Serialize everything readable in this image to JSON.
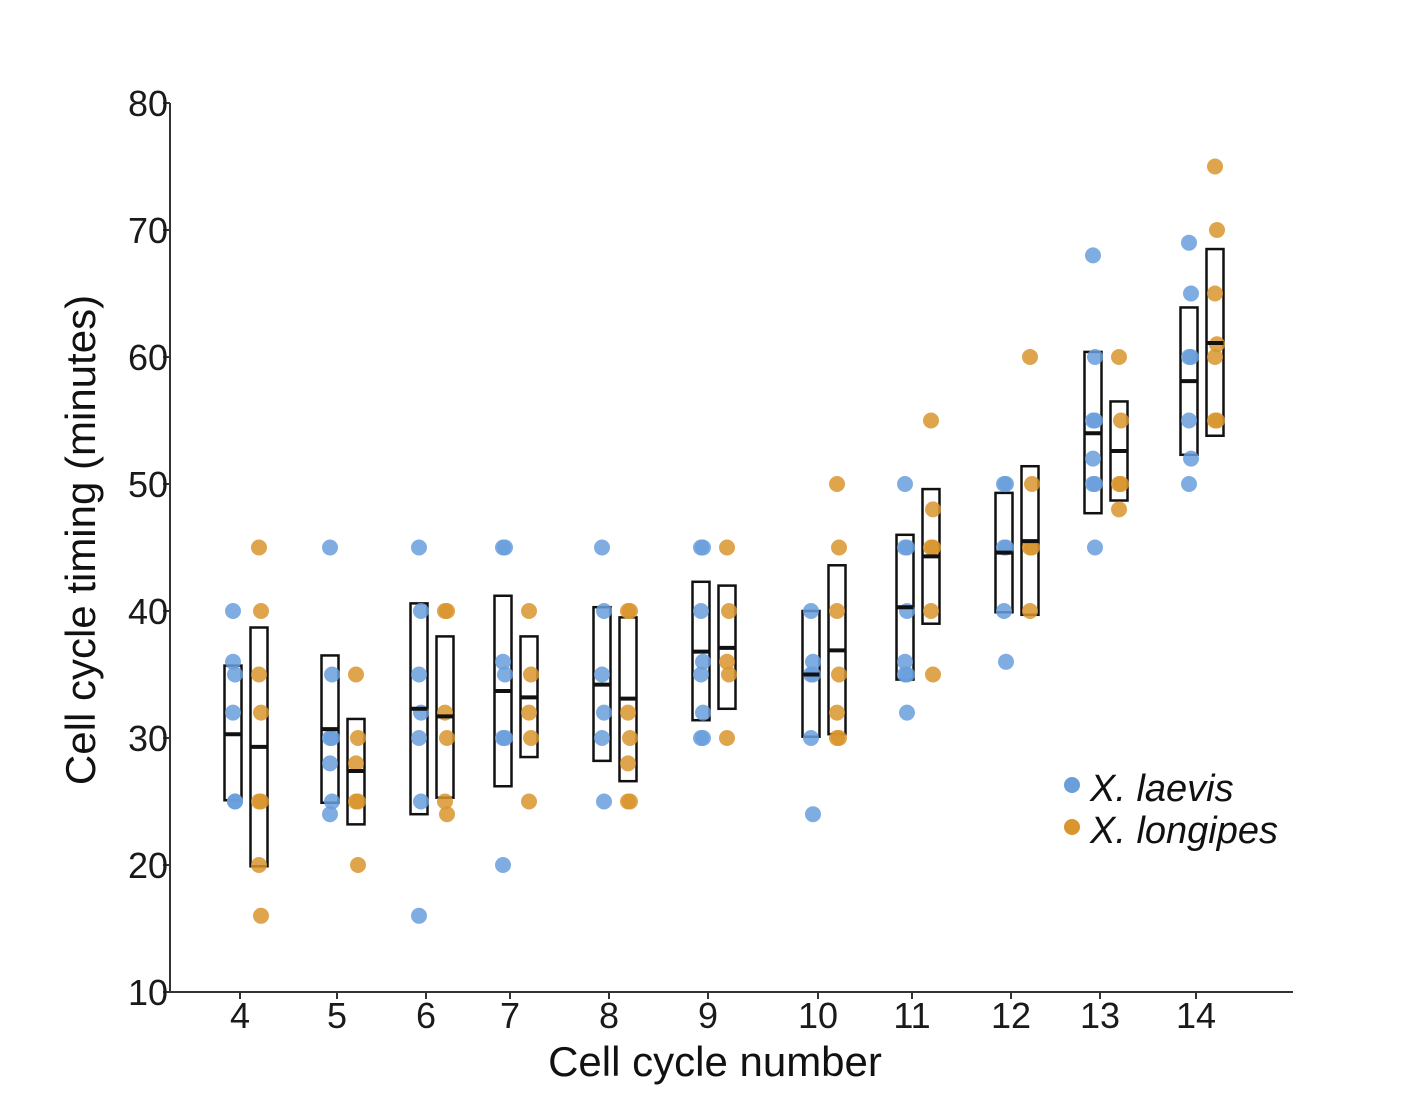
{
  "chart_data": {
    "type": "scatter",
    "title": "",
    "xlabel": "Cell cycle number",
    "ylabel": "Cell cycle timing (minutes)",
    "ylim": [
      10,
      80
    ],
    "yticks": [
      10,
      20,
      30,
      40,
      50,
      60,
      70,
      80
    ],
    "categories": [
      "4",
      "5",
      "6",
      "7",
      "8",
      "9",
      "10",
      "11",
      "12",
      "13",
      "14"
    ],
    "legend": {
      "position": "bottom-right"
    },
    "series": [
      {
        "name": "X. laevis",
        "color": "#6a9fdc",
        "points": [
          [
            36,
            35,
            32,
            25,
            40,
            25
          ],
          [
            45,
            35,
            30,
            30,
            28,
            25,
            24
          ],
          [
            45,
            40,
            35,
            32,
            30,
            25,
            16
          ],
          [
            45,
            45,
            36,
            35,
            30,
            30,
            20
          ],
          [
            45,
            40,
            35,
            32,
            30,
            25
          ],
          [
            45,
            45,
            40,
            36,
            35,
            32,
            30,
            30
          ],
          [
            40,
            36,
            35,
            35,
            30,
            24
          ],
          [
            50,
            45,
            45,
            40,
            36,
            35,
            35,
            32
          ],
          [
            50,
            50,
            45,
            45,
            40,
            36
          ],
          [
            68,
            60,
            55,
            55,
            52,
            50,
            50,
            45
          ],
          [
            69,
            65,
            60,
            60,
            55,
            52,
            50
          ]
        ],
        "means": [
          30.3,
          30.7,
          32.3,
          33.7,
          34.2,
          36.8,
          35.0,
          40.3,
          44.6,
          54.0,
          58.1
        ],
        "box_low": [
          25.1,
          24.9,
          24.0,
          26.2,
          28.2,
          31.4,
          30.1,
          34.6,
          39.9,
          47.7,
          52.3
        ],
        "box_high": [
          35.7,
          36.5,
          40.6,
          41.2,
          40.3,
          42.3,
          40.0,
          46.0,
          49.3,
          60.4,
          63.9
        ]
      },
      {
        "name": "X. longipes",
        "color": "#d9952e",
        "points": [
          [
            45,
            40,
            35,
            32,
            25,
            25,
            20,
            16
          ],
          [
            35,
            30,
            28,
            25,
            25,
            20
          ],
          [
            40,
            40,
            32,
            30,
            25,
            24
          ],
          [
            40,
            35,
            32,
            30,
            25
          ],
          [
            40,
            40,
            32,
            30,
            28,
            25,
            25
          ],
          [
            45,
            40,
            36,
            35,
            30
          ],
          [
            50,
            45,
            40,
            35,
            32,
            30,
            30
          ],
          [
            55,
            48,
            45,
            45,
            40,
            35
          ],
          [
            60,
            50,
            45,
            45,
            40
          ],
          [
            60,
            55,
            50,
            50,
            48
          ],
          [
            75,
            70,
            65,
            61,
            60,
            55,
            55
          ]
        ],
        "means": [
          29.3,
          27.4,
          31.7,
          33.2,
          33.1,
          37.1,
          36.9,
          44.3,
          45.5,
          52.6,
          61.1
        ],
        "box_low": [
          19.9,
          23.2,
          25.3,
          28.5,
          26.6,
          32.3,
          30.3,
          39.0,
          39.7,
          48.7,
          53.8
        ],
        "box_high": [
          38.7,
          31.5,
          38.0,
          38.0,
          39.5,
          42.0,
          43.6,
          49.6,
          51.4,
          56.5,
          68.5
        ]
      }
    ]
  }
}
